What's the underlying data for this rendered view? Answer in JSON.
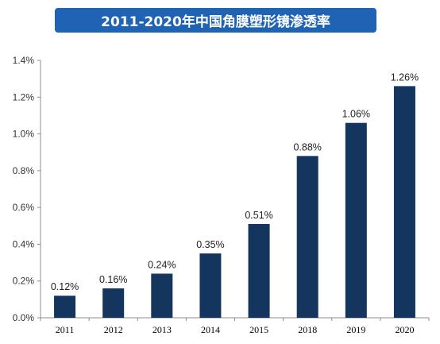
{
  "chart_data": {
    "type": "bar",
    "title": "2011-2020年中国角膜塑形镜渗透率",
    "categories": [
      "2011",
      "2012",
      "2013",
      "2014",
      "2015",
      "2018",
      "2019",
      "2020"
    ],
    "values": [
      0.12,
      0.16,
      0.24,
      0.35,
      0.51,
      0.88,
      1.06,
      1.26
    ],
    "data_labels": [
      "0.12%",
      "0.16%",
      "0.24%",
      "0.35%",
      "0.51%",
      "0.88%",
      "1.06%",
      "1.26%"
    ],
    "y_ticks": [
      "0.0%",
      "0.2%",
      "0.4%",
      "0.6%",
      "0.8%",
      "1.0%",
      "1.2%",
      "1.4%"
    ],
    "ylim": [
      0,
      1.4
    ],
    "grid": false,
    "legend": "none",
    "bar_color": "#14355d",
    "title_bg_color": "#1f63b5"
  }
}
